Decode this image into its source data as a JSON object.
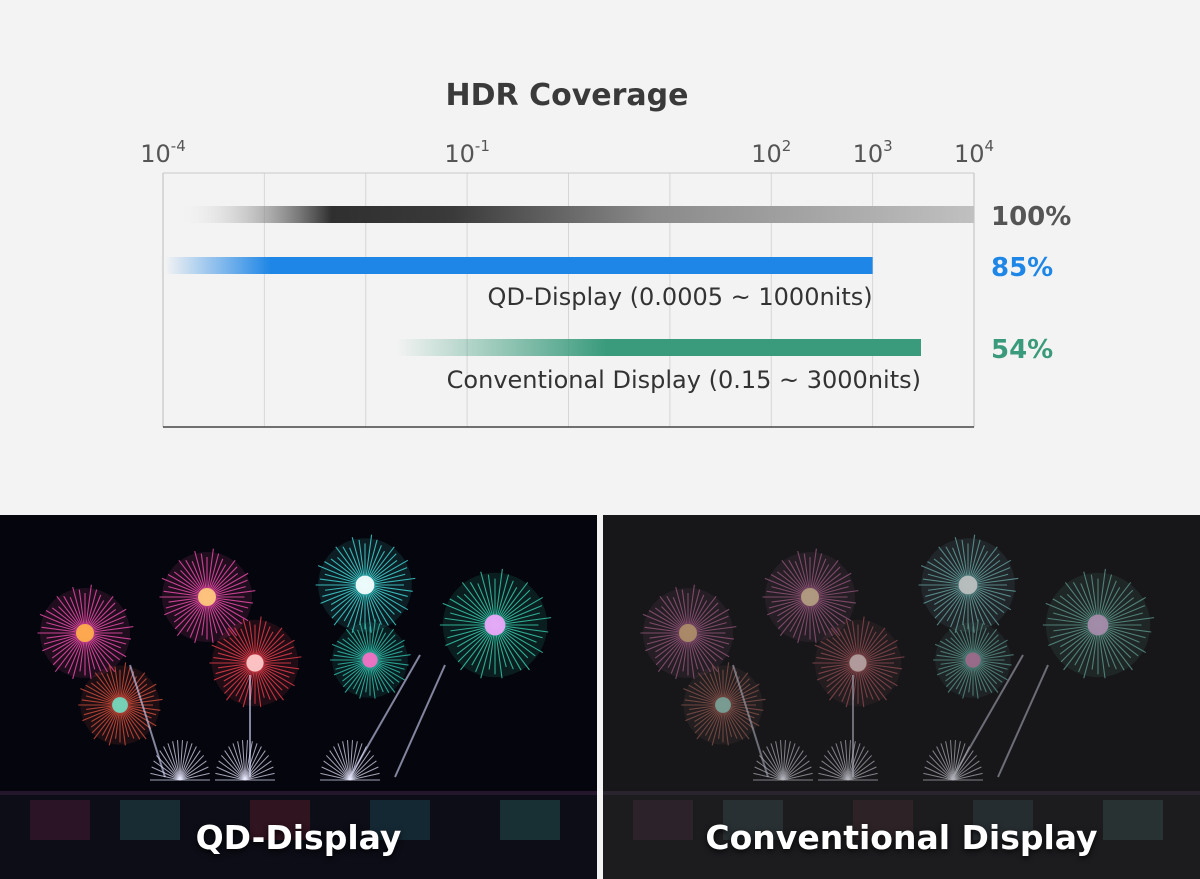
{
  "chart_data": {
    "type": "bar",
    "title": "HDR Coverage",
    "x_scale": "log",
    "x_unit": "nits",
    "xlim": [
      0.0001,
      10000
    ],
    "grid": true,
    "x_ticks": [
      {
        "base": "10",
        "exp": "-4",
        "value": 0.0001
      },
      {
        "base": "10",
        "exp": "-1",
        "value": 0.1
      },
      {
        "base": "10",
        "exp": "2",
        "value": 100
      },
      {
        "base": "10",
        "exp": "3",
        "value": 1000
      },
      {
        "base": "10",
        "exp": "4",
        "value": 10000
      }
    ],
    "series": [
      {
        "key": "full",
        "label": "",
        "min_nits": 0.0001,
        "max_nits": 10000,
        "coverage": "100%",
        "color": "#3a3a3a",
        "gradient": "gray"
      },
      {
        "key": "qd",
        "label": "QD-Display (0.0005 ~ 1000nits)",
        "min_nits": 0.0005,
        "max_nits": 1000,
        "coverage": "85%",
        "color": "#1e86e6",
        "gradient": "blue"
      },
      {
        "key": "conventional",
        "label": "Conventional Display (0.15 ~ 3000nits)",
        "min_nits": 0.15,
        "max_nits": 3000,
        "coverage": "54%",
        "color": "#3a9b7c",
        "gradient": "green"
      }
    ]
  },
  "colors": {
    "background": "#f3f3f3",
    "percent_gray": "#555555",
    "percent_blue": "#1e86e6",
    "percent_green": "#3a9b7c"
  },
  "photos": {
    "left_caption": "QD-Display",
    "right_caption": "Conventional Display"
  }
}
